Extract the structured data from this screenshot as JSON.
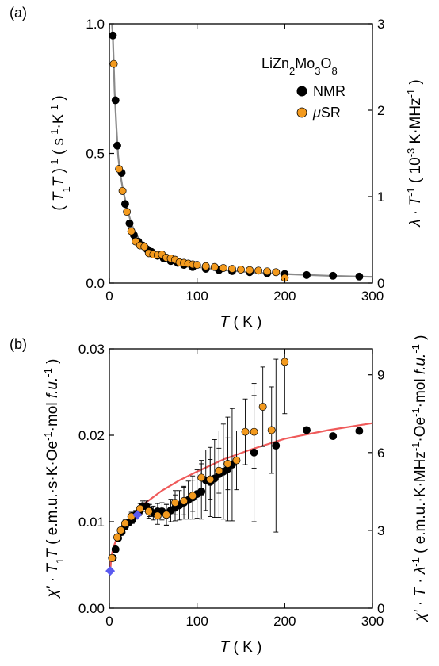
{
  "chart_data": [
    {
      "type": "scatter",
      "panel_label": "(a)",
      "annotation": "LiZn2Mo3O8",
      "xlabel": "T ( K )",
      "ylabel_left": "( T1T )-1 ( s-1·K-1 )",
      "ylabel_right": "λ · T-1 ( 10-3 K·MHz-1 )",
      "xlim": [
        0,
        300
      ],
      "ylim_left": [
        0,
        1.0
      ],
      "ylim_right": [
        0,
        3
      ],
      "xticks": [
        "0",
        "100",
        "200",
        "300"
      ],
      "yticks_left": [
        "0.0",
        "0.5",
        "1.0"
      ],
      "yticks_right": [
        "0",
        "1",
        "2",
        "3"
      ],
      "legend": [
        "NMR",
        "μSR"
      ],
      "colors": {
        "nmr": "#000000",
        "musr": "#f39a1e",
        "fit": "#8a8a8a"
      },
      "series": [
        {
          "name": "NMR",
          "axis": "left",
          "x": [
            4,
            7,
            9,
            14,
            18,
            23,
            28,
            33,
            38,
            43,
            48,
            55,
            62,
            70,
            78,
            85,
            95,
            110,
            125,
            140,
            160,
            180,
            200,
            225,
            255,
            285
          ],
          "y": [
            0.955,
            0.705,
            0.53,
            0.425,
            0.305,
            0.23,
            0.185,
            0.16,
            0.145,
            0.13,
            0.12,
            0.105,
            0.095,
            0.085,
            0.078,
            0.07,
            0.062,
            0.055,
            0.05,
            0.046,
            0.042,
            0.038,
            0.035,
            0.031,
            0.028,
            0.025
          ]
        },
        {
          "name": "μSR",
          "axis": "left",
          "x": [
            5,
            11,
            15,
            20,
            25,
            30,
            35,
            40,
            45,
            50,
            55,
            60,
            65,
            70,
            75,
            80,
            85,
            90,
            95,
            100,
            110,
            120,
            130,
            140,
            150,
            160,
            170,
            180,
            190,
            200
          ],
          "y": [
            0.845,
            0.44,
            0.355,
            0.275,
            0.2,
            0.16,
            0.145,
            0.14,
            0.115,
            0.11,
            0.108,
            0.11,
            0.098,
            0.095,
            0.09,
            0.08,
            0.078,
            0.075,
            0.072,
            0.07,
            0.065,
            0.062,
            0.058,
            0.055,
            0.052,
            0.05,
            0.048,
            0.045,
            0.042,
            0.02
          ]
        },
        {
          "name": "",
          "kind": "line",
          "axis": "left",
          "x": [
            3,
            4,
            5,
            6,
            8,
            10,
            12,
            15,
            20,
            25,
            30,
            40,
            50,
            60,
            80,
            100,
            130,
            160,
            200,
            250,
            300
          ],
          "y": [
            1.0,
            0.95,
            0.85,
            0.74,
            0.6,
            0.49,
            0.43,
            0.37,
            0.29,
            0.23,
            0.19,
            0.14,
            0.115,
            0.097,
            0.075,
            0.062,
            0.05,
            0.042,
            0.035,
            0.028,
            0.024
          ]
        }
      ]
    },
    {
      "type": "scatter",
      "panel_label": "(b)",
      "xlabel": "T ( K )",
      "ylabel_left": "χ' · T1T ( e.m.u.·s·K·Oe-1·mol f.u.-1 )",
      "ylabel_right": "χ' · T · λ-1 ( e.m.u.·K·MHz-1·Oe-1·mol f.u.-1 )",
      "xlim": [
        0,
        300
      ],
      "ylim_left": [
        0,
        0.03
      ],
      "ylim_right": [
        0,
        10
      ],
      "xticks": [
        "0",
        "100",
        "200",
        "300"
      ],
      "yticks_left": [
        "0.00",
        "0.01",
        "0.02",
        "0.03"
      ],
      "yticks_right": [
        "0",
        "3",
        "6",
        "9"
      ],
      "colors": {
        "nmr": "#000000",
        "musr": "#f39a1e",
        "fit": "#ef5a5a",
        "marker": "#5a5af0"
      },
      "series": [
        {
          "name": "NMR",
          "axis": "left",
          "x": [
            4,
            7,
            10,
            14,
            18,
            22,
            26,
            30,
            34,
            38,
            42,
            46,
            50,
            55,
            60,
            65,
            70,
            75,
            80,
            85,
            90,
            95,
            100,
            105,
            110,
            115,
            120,
            125,
            130,
            135,
            140,
            165,
            190,
            225,
            255,
            285
          ],
          "y": [
            0.0058,
            0.0068,
            0.0081,
            0.0088,
            0.0095,
            0.0099,
            0.0102,
            0.0108,
            0.0112,
            0.0118,
            0.0118,
            0.0113,
            0.011,
            0.0112,
            0.0112,
            0.0108,
            0.0113,
            0.0116,
            0.0119,
            0.0122,
            0.0125,
            0.0128,
            0.0132,
            0.0135,
            0.0148,
            0.0146,
            0.015,
            0.0155,
            0.0158,
            0.0161,
            0.0166,
            0.018,
            0.0188,
            0.0206,
            0.0199,
            0.0205
          ],
          "err": [
            0.0003,
            0.0003,
            0.0003,
            0.0003,
            0.0004,
            0.0004,
            0.0004,
            0.0005,
            0.0005,
            0.0006,
            0.0006,
            0.0007,
            0.0008,
            0.0009,
            0.001,
            0.0012,
            0.0013,
            0.0015,
            0.0017,
            0.0019,
            0.0022,
            0.0025,
            0.0028,
            0.0032,
            0.0035,
            0.004,
            0.0045,
            0.005,
            0.0055,
            0.006,
            0.0065,
            0.008,
            0.01,
            0.0,
            0.0,
            0.0
          ]
        },
        {
          "name": "μSR",
          "axis": "left",
          "x": [
            3,
            9,
            13,
            18,
            25,
            35,
            45,
            55,
            65,
            75,
            85,
            95,
            105,
            115,
            125,
            135,
            145,
            155,
            165,
            175,
            185,
            200
          ],
          "y": [
            0.0058,
            0.0082,
            0.009,
            0.0098,
            0.0106,
            0.0115,
            0.0112,
            0.0107,
            0.0108,
            0.0122,
            0.0124,
            0.013,
            0.0151,
            0.0149,
            0.0159,
            0.0167,
            0.0171,
            0.0204,
            0.0204,
            0.0233,
            0.0206,
            0.0285
          ],
          "err": [
            0.0003,
            0.0003,
            0.0003,
            0.0004,
            0.0005,
            0.0006,
            0.0008,
            0.001,
            0.0012,
            0.0014,
            0.0016,
            0.0018,
            0.002,
            0.0023,
            0.0026,
            0.003,
            0.0034,
            0.0038,
            0.0042,
            0.0046,
            0.005,
            0.006
          ]
        },
        {
          "name": "",
          "kind": "marker",
          "axis": "left",
          "x": [
            1,
            32
          ],
          "y": [
            0.0043,
            0.0108
          ]
        },
        {
          "name": "",
          "kind": "line",
          "axis": "left",
          "x": [
            1,
            2,
            4,
            6,
            8,
            10,
            15,
            20,
            30,
            40,
            60,
            80,
            100,
            130,
            160,
            200,
            250,
            300
          ],
          "y": [
            0.0042,
            0.0058,
            0.0068,
            0.0074,
            0.008,
            0.0085,
            0.0093,
            0.01,
            0.0112,
            0.0121,
            0.0136,
            0.0148,
            0.0158,
            0.0172,
            0.0183,
            0.0196,
            0.0206,
            0.0214
          ]
        }
      ]
    }
  ]
}
